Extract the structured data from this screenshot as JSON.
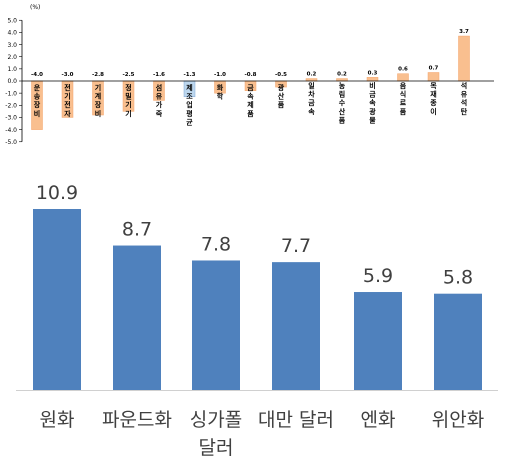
{
  "chart_data": [
    {
      "type": "bar",
      "unit_label": "(%)",
      "categories": [
        "운송장비",
        "전기전자",
        "기계장비",
        "정밀기기",
        "섬유가죽",
        "제조업평균",
        "화학",
        "금속제품",
        "광산품",
        "일차금속",
        "농림수산품",
        "비금속광물",
        "음식료품",
        "목재종이",
        "석유석탄"
      ],
      "values": [
        -4.0,
        -3.0,
        -2.8,
        -2.5,
        -1.6,
        -1.3,
        -1.0,
        -0.8,
        -0.5,
        0.2,
        0.2,
        0.3,
        0.6,
        0.7,
        3.7
      ],
      "value_labels": [
        "-4.0",
        "-3.0",
        "-2.8",
        "-2.5",
        "-1.6",
        "-1.3",
        "-1.0",
        "-0.8",
        "-0.5",
        "0.2",
        "0.2",
        "0.3",
        "0.6",
        "0.7",
        "3.7"
      ],
      "highlight_category": "제조업평균",
      "yticks": [
        "5.0",
        "4.0",
        "3.0",
        "2.0",
        "1.0",
        "0.0",
        "-1.0",
        "-2.0",
        "-3.0",
        "-4.0",
        "-5.0"
      ],
      "ylim": [
        -5,
        5
      ],
      "colors": {
        "bar": "#f9bf8f",
        "bar_edge": "#f4a46a",
        "highlight": "#bdd7ee",
        "highlight_edge": "#7fa7d6",
        "axis": "#000000"
      }
    },
    {
      "type": "bar",
      "categories": [
        "원화",
        "파운드화",
        "싱가폴 달러",
        "대만 달러",
        "엔화",
        "위안화"
      ],
      "category_lines": [
        [
          "원화"
        ],
        [
          "파운드화"
        ],
        [
          "싱가폴",
          "달러"
        ],
        [
          "대만 달러"
        ],
        [
          "엔화"
        ],
        [
          "위안화"
        ]
      ],
      "values": [
        10.9,
        8.7,
        7.8,
        7.7,
        5.9,
        5.8
      ],
      "value_labels": [
        "10.9",
        "8.7",
        "7.8",
        "7.7",
        "5.9",
        "5.8"
      ],
      "ylim": [
        0,
        10.9
      ],
      "colors": {
        "bar": "#4f81bd",
        "axis": "#d0d0d0",
        "text": "#404040"
      }
    }
  ]
}
